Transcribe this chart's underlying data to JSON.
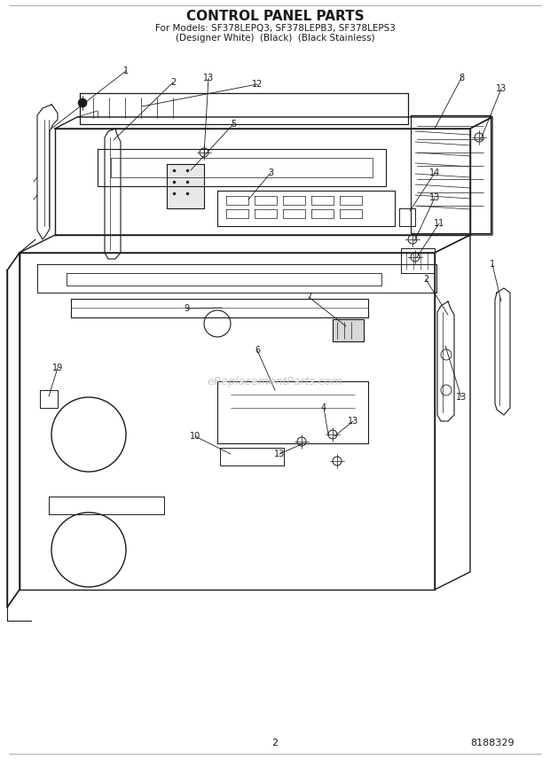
{
  "title": "CONTROL PANEL PARTS",
  "subtitle1": "For Models: SF378LEPQ3, SF378LEPB3, SF378LEPS3",
  "subtitle2": "(Designer White)  (Black)  (Black Stainless)",
  "page_num": "2",
  "doc_num": "8188329",
  "watermark": "eReplacementParts.com",
  "bg_color": "#ffffff",
  "lc": "#1a1a1a",
  "fig_w": 6.2,
  "fig_h": 8.56,
  "dpi": 100
}
